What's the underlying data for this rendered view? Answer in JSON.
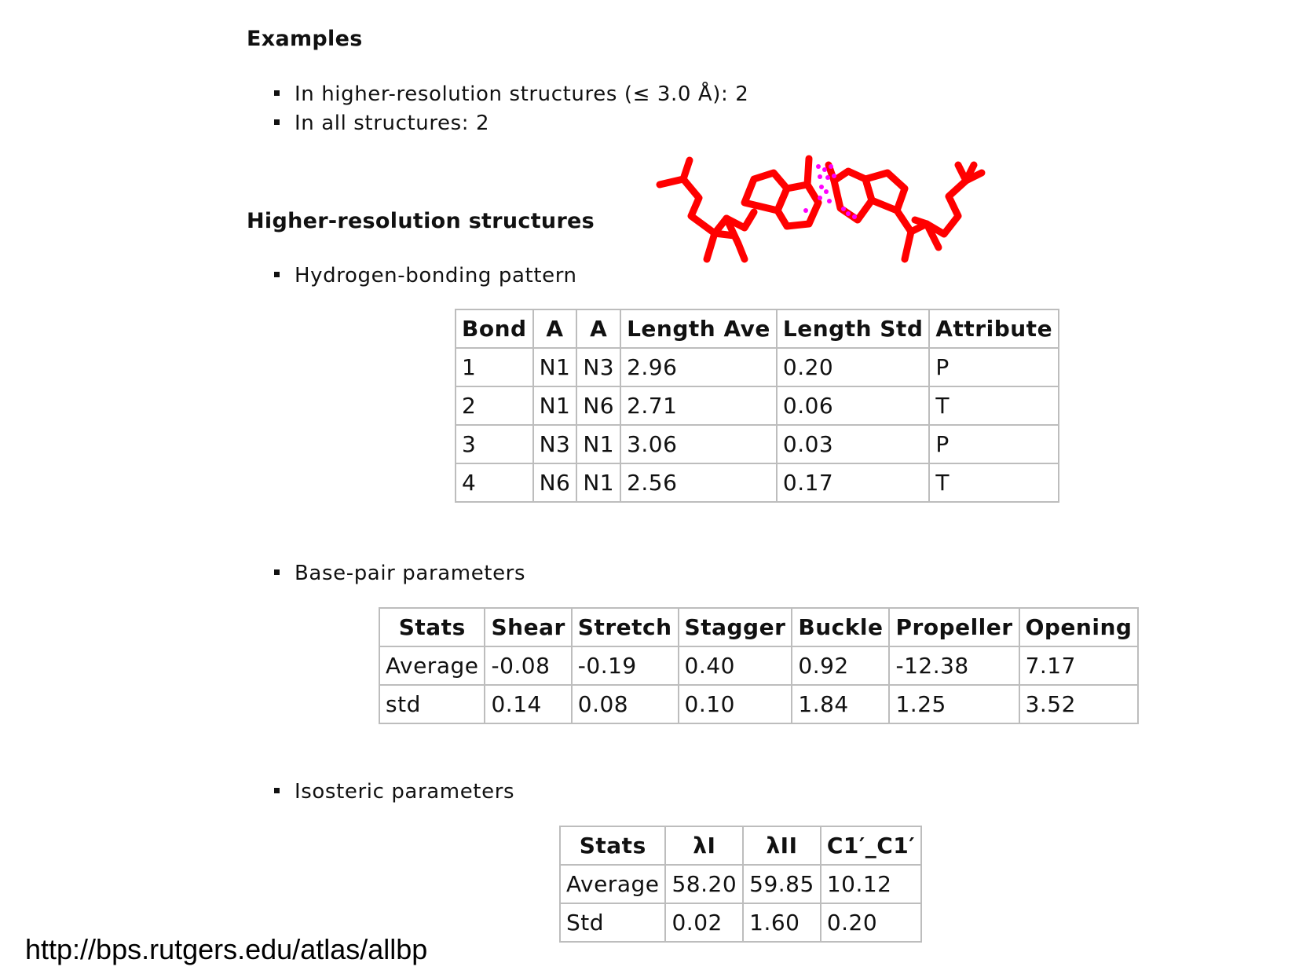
{
  "examples": {
    "heading": "Examples",
    "items": [
      "In higher-resolution structures (≤ 3.0 Å): 2",
      "In all structures: 2"
    ]
  },
  "higher_res": {
    "heading": "Higher-resolution structures",
    "hbond_label": "Hydrogen-bonding pattern",
    "basepair_label": "Base-pair parameters",
    "isosteric_label": "Isosteric parameters"
  },
  "hbond_table": {
    "headers": [
      "Bond",
      "A",
      "A",
      "Length Ave",
      "Length Std",
      "Attribute"
    ],
    "rows": [
      [
        "1",
        "N1",
        "N3",
        "2.96",
        "0.20",
        "P"
      ],
      [
        "2",
        "N1",
        "N6",
        "2.71",
        "0.06",
        "T"
      ],
      [
        "3",
        "N3",
        "N1",
        "3.06",
        "0.03",
        "P"
      ],
      [
        "4",
        "N6",
        "N1",
        "2.56",
        "0.17",
        "T"
      ]
    ]
  },
  "basepair_table": {
    "headers": [
      "Stats",
      "Shear",
      "Stretch",
      "Stagger",
      "Buckle",
      "Propeller",
      "Opening"
    ],
    "rows": [
      [
        "Average",
        "-0.08",
        "-0.19",
        "0.40",
        "0.92",
        "-12.38",
        "7.17"
      ],
      [
        "std",
        "0.14",
        "0.08",
        "0.10",
        "1.84",
        "1.25",
        "3.52"
      ]
    ]
  },
  "isosteric_table": {
    "headers": [
      "Stats",
      "λI",
      "λII",
      "C1′_C1′"
    ],
    "rows": [
      [
        "Average",
        "58.20",
        "59.85",
        "10.12"
      ],
      [
        "Std",
        "0.02",
        "1.60",
        "0.20"
      ]
    ]
  },
  "footer": {
    "url": "http://bps.rutgers.edu/atlas/allbp"
  },
  "molecule": {
    "bond_color": "#ff0000",
    "hbond_color": "#ff00ff"
  }
}
